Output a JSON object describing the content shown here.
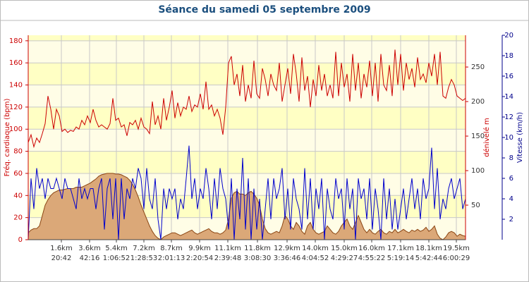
{
  "chart_data": {
    "type": "multi-axis-line",
    "title": "Séance du samedi 05 septembre 2009",
    "ylabel": "Fréq. cardiaque (bpm)",
    "y2label": "dénivelé m",
    "y3label": "Vitesse (km/h)",
    "xlim": [
      0,
      155
    ],
    "xticks": [
      {
        "value": 11.75,
        "label": "1.6km",
        "time": "20:42"
      },
      {
        "value": 21.75,
        "label": "3.6km",
        "time": "42:16"
      },
      {
        "value": 31.25,
        "label": "5.4km",
        "time": "1:06:52"
      },
      {
        "value": 41,
        "label": "7.2km",
        "time": "1:28:53"
      },
      {
        "value": 50.75,
        "label": "8.7km",
        "time": "2:01:13"
      },
      {
        "value": 60.75,
        "label": "9.9km",
        "time": "2:20:54"
      },
      {
        "value": 70.75,
        "label": "11.1km",
        "time": "2:39:48"
      },
      {
        "value": 81.25,
        "label": "11.8km",
        "time": "3:08:30"
      },
      {
        "value": 91.75,
        "label": "12.9km",
        "time": "3:36:46"
      },
      {
        "value": 101.75,
        "label": "14.0km",
        "time": "4:04:52"
      },
      {
        "value": 112,
        "label": "15.0km",
        "time": "4:29:27"
      },
      {
        "value": 121.75,
        "label": "16.0km",
        "time": "4:55:22"
      },
      {
        "value": 132,
        "label": "17.1km",
        "time": "5:19:14"
      },
      {
        "value": 142,
        "label": "18.1km",
        "time": "5:42:44"
      },
      {
        "value": 151.75,
        "label": "19.5km",
        "time": "6:00:29"
      }
    ],
    "ylim": [
      0,
      185
    ],
    "yticks": [
      0,
      20,
      40,
      60,
      80,
      100,
      120,
      140,
      160,
      180
    ],
    "y2lim": [
      0,
      296
    ],
    "y2ticks": [
      50,
      100,
      150,
      200,
      250
    ],
    "y3lim": [
      0,
      20
    ],
    "y3ticks": [
      2,
      4,
      6,
      8,
      10,
      12,
      14,
      16,
      18,
      20
    ],
    "series": [
      {
        "name": "dénivelé",
        "axis": "y2",
        "style": "area",
        "color": "#dba878",
        "values": [
          10,
          14,
          16,
          16,
          20,
          35,
          50,
          58,
          64,
          68,
          70,
          72,
          72,
          73,
          74,
          74,
          74,
          76,
          76,
          76,
          78,
          80,
          82,
          85,
          88,
          92,
          94,
          95,
          96,
          96,
          96,
          95,
          95,
          94,
          92,
          90,
          86,
          80,
          72,
          62,
          50,
          40,
          30,
          20,
          12,
          6,
          2,
          0,
          4,
          6,
          8,
          10,
          10,
          8,
          6,
          8,
          10,
          12,
          14,
          10,
          8,
          10,
          12,
          14,
          16,
          12,
          10,
          10,
          8,
          10,
          14,
          30,
          60,
          68,
          70,
          66,
          66,
          64,
          68,
          70,
          66,
          60,
          50,
          30,
          16,
          10,
          8,
          10,
          12,
          10,
          20,
          35,
          30,
          20,
          15,
          25,
          20,
          12,
          8,
          20,
          25,
          15,
          10,
          8,
          10,
          12,
          20,
          15,
          10,
          8,
          12,
          20,
          25,
          30,
          20,
          15,
          25,
          35,
          25,
          15,
          10,
          15,
          10,
          8,
          12,
          15,
          10,
          8,
          12,
          10,
          15,
          10,
          12,
          15,
          12,
          10,
          14,
          12,
          15,
          12,
          14,
          18,
          12,
          15,
          20,
          8,
          2,
          0,
          4,
          10,
          12,
          10,
          5,
          8,
          6,
          5
        ]
      },
      {
        "name": "Fréq. cardiaque",
        "axis": "y",
        "style": "line",
        "color": "#cc0000",
        "values": [
          88,
          95,
          84,
          92,
          88,
          96,
          105,
          130,
          118,
          100,
          118,
          112,
          98,
          100,
          97,
          99,
          98,
          102,
          100,
          108,
          104,
          112,
          106,
          118,
          108,
          102,
          104,
          102,
          100,
          105,
          128,
          108,
          110,
          102,
          104,
          94,
          106,
          104,
          108,
          100,
          110,
          102,
          100,
          96,
          125,
          104,
          112,
          100,
          128,
          108,
          120,
          135,
          110,
          124,
          112,
          120,
          118,
          130,
          116,
          122,
          120,
          132,
          118,
          143,
          118,
          122,
          112,
          118,
          110,
          95,
          120,
          160,
          166,
          140,
          150,
          130,
          158,
          125,
          140,
          128,
          162,
          132,
          128,
          155,
          145,
          130,
          150,
          140,
          135,
          160,
          125,
          140,
          155,
          132,
          168,
          150,
          125,
          165,
          135,
          148,
          120,
          145,
          130,
          158,
          135,
          150,
          130,
          140,
          128,
          170,
          130,
          160,
          138,
          150,
          125,
          168,
          135,
          160,
          128,
          150,
          138,
          162,
          130,
          160,
          125,
          168,
          140,
          135,
          158,
          130,
          172,
          140,
          168,
          135,
          160,
          145,
          155,
          138,
          165,
          145,
          150,
          142,
          160,
          148,
          168,
          140,
          170,
          130,
          128,
          138,
          145,
          140,
          130,
          128,
          126,
          128
        ]
      },
      {
        "name": "Vitesse",
        "axis": "y3",
        "style": "line",
        "color": "#0000cc",
        "values": [
          0,
          6,
          3,
          7,
          5,
          6,
          4,
          6,
          5,
          5,
          6,
          5,
          4,
          6,
          5,
          5,
          4,
          3,
          6,
          4,
          5,
          4,
          5,
          5,
          3,
          5,
          6,
          1,
          5,
          6,
          2,
          6,
          0,
          6,
          2,
          5,
          4,
          6,
          5,
          7,
          6,
          3,
          7,
          4,
          3,
          6,
          2,
          0,
          5,
          3,
          5,
          4,
          5,
          2,
          4,
          3,
          6,
          9.2,
          4,
          6,
          3,
          5,
          4,
          7,
          5,
          2,
          6,
          3,
          7,
          5,
          4,
          1,
          6,
          0,
          5,
          2,
          8,
          1,
          6,
          0,
          5,
          1,
          4,
          0,
          3,
          6,
          2,
          6,
          4,
          5,
          7,
          2,
          5,
          1,
          6,
          4,
          3,
          1,
          7,
          2,
          6,
          1,
          5,
          3,
          6,
          0,
          5,
          3,
          2,
          6,
          4,
          5,
          1,
          6,
          3,
          5,
          0,
          6,
          4,
          5,
          2,
          6,
          1,
          5,
          3,
          0,
          6,
          2,
          5,
          1,
          4,
          1,
          3,
          5,
          2,
          4,
          6,
          3,
          5,
          2,
          6,
          4,
          5,
          9,
          3,
          7,
          2,
          4,
          3,
          5,
          6,
          4,
          5,
          6,
          3,
          4
        ]
      }
    ],
    "bands": [
      "#fffde6",
      "#ffffc4"
    ],
    "grid_color": "#c8c8c8",
    "y_color": "#cc0000",
    "y3_color": "#00008b"
  }
}
